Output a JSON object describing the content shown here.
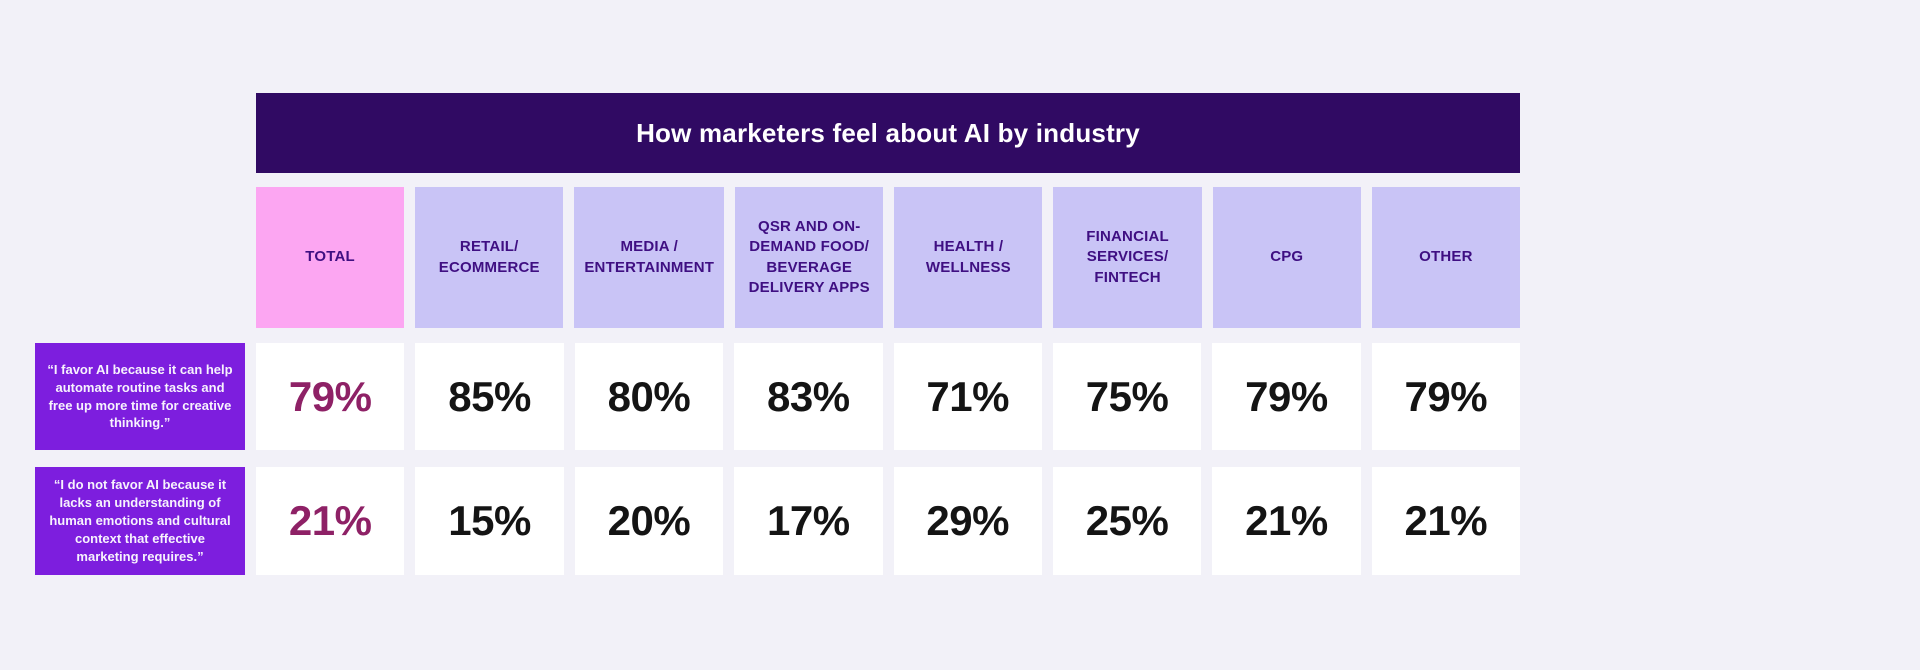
{
  "table": {
    "title": "How marketers feel about AI by industry",
    "columns": [
      {
        "label": "TOTAL",
        "highlight": true
      },
      {
        "label": "RETAIL/ ECOMMERCE",
        "highlight": false
      },
      {
        "label": "MEDIA / ENTERTAINMENT",
        "highlight": false
      },
      {
        "label": "QSR AND ON-DEMAND FOOD/ BEVERAGE DELIVERY APPS",
        "highlight": false
      },
      {
        "label": "HEALTH / WELLNESS",
        "highlight": false
      },
      {
        "label": "FINANCIAL SERVICES/ FINTECH",
        "highlight": false
      },
      {
        "label": "CPG",
        "highlight": false
      },
      {
        "label": "OTHER",
        "highlight": false
      }
    ],
    "rows": [
      {
        "label": "“I favor AI because it can help automate routine tasks and free up more time for creative thinking.”",
        "values": [
          "79%",
          "85%",
          "80%",
          "83%",
          "71%",
          "75%",
          "79%",
          "79%"
        ]
      },
      {
        "label": "“I do not favor AI because it lacks an understanding of human emotions and cultural context that effective marketing requires.”",
        "values": [
          "21%",
          "15%",
          "20%",
          "17%",
          "29%",
          "25%",
          "21%",
          "21%"
        ]
      }
    ]
  },
  "colors": {
    "page_background": "#f2f1f8",
    "title_bar": "#300a63",
    "title_text": "#ffffff",
    "total_header_background": "#fca6f2",
    "header_background": "#c9c4f6",
    "header_text": "#3f0f82",
    "row_label_background": "#7d1ede",
    "row_label_text": "#f7f2fd",
    "cell_background": "#ffffff",
    "total_value_text": "#8e2166",
    "value_text": "#141414"
  },
  "chart_data": {
    "type": "table",
    "title": "How marketers feel about AI by industry",
    "categories": [
      "TOTAL",
      "RETAIL/ECOMMERCE",
      "MEDIA / ENTERTAINMENT",
      "QSR AND ON-DEMAND FOOD/BEVERAGE DELIVERY APPS",
      "HEALTH / WELLNESS",
      "FINANCIAL SERVICES/FINTECH",
      "CPG",
      "OTHER"
    ],
    "unit": "%",
    "series": [
      {
        "name": "“I favor AI because it can help automate routine tasks and free up more time for creative thinking.”",
        "values": [
          79,
          85,
          80,
          83,
          71,
          75,
          79,
          79
        ]
      },
      {
        "name": "“I do not favor AI because it lacks an understanding of human emotions and cultural context that effective marketing requires.”",
        "values": [
          21,
          15,
          20,
          17,
          29,
          25,
          21,
          21
        ]
      }
    ],
    "notes": "Highlighted TOTAL column header is pink; its values are plum-colored. Row labels are survey statements shown in purple boxes."
  }
}
